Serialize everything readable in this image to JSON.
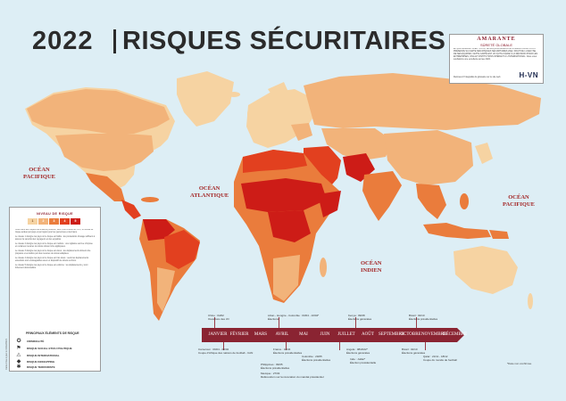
{
  "title": {
    "year": "2022",
    "main": "RISQUES SÉCURITAIRES"
  },
  "oceans": [
    {
      "key": "pac_w",
      "label": "OCÉAN\nPACIFIQUE"
    },
    {
      "key": "atl",
      "label": "OCÉAN\nATLANTIQUE"
    },
    {
      "key": "ind",
      "label": "OCÉAN\nINDIEN"
    },
    {
      "key": "pac_e",
      "label": "OCÉAN\nPACIFIQUE"
    }
  ],
  "brand": {
    "logo": "AMARANTE",
    "tagline": "SÛRETÉ GLOBALE",
    "text": "EN PARTENARIAT AVEC H-OVN, LE GROUPE AMARANTE INTERNATIONAL VOUS PRÉSENTE SA CARTE DES RISQUES SÉCURITAIRES 2022, FRUIT DE L'ANALYSE DE SES ÉQUIPES. CETTE CARTE EST UN OUTIL D'AIDE À LA DÉCISION POUR LES ENTREPRISES, ONG ET INSTITUTIONS OPÉRANT À L'INTERNATIONAL. Nous vous souhaitons une excellente année 2022.",
    "url": "Retrouvez l'intégralité du glossaire sur le site web",
    "partner": "H-VN"
  },
  "legend": {
    "title": "NIVEAU DE RISQUE",
    "scale": [
      "1",
      "2",
      "3",
      "4",
      "5"
    ],
    "paragraphs": [
      "Cette carte des risques sécuritaires présente, selon une échelle de 1 à 5, le niveau de risque évalué par pays et par région pour les personnes et les biens.",
      "Le niveau 1 désigne les pays où le risque est faible : les précautions d'usage suffisent à assurer la sécurité des voyageurs et des expatriés.",
      "Le niveau 2 désigne les pays où le risque est modéré : une vigilance accrue s'impose et certaines mesures de sûreté doivent être appliquées.",
      "Le niveau 3 désigne les pays où le risque est élevé : les déplacements doivent être préparés et encadrés par des mesures de sûreté adaptées.",
      "Le niveau 4 désigne les pays où le risque est très élevé : seuls les déplacements essentiels sont envisageables avec un dispositif de sûreté renforcé.",
      "Le niveau 5 désigne les pays où le risque est extrême : les déplacements y sont fortement déconseillés."
    ],
    "symbols_title": "PRINCIPAUX ÉLÉMENTS DE RISQUE",
    "symbols": [
      {
        "icon": "criminality-icon",
        "glyph": "✪",
        "label": "CRIMINALITÉ"
      },
      {
        "icon": "political-unrest-icon",
        "glyph": "⚑",
        "label": "RISQUE SOCIAL ET/OU POLITIQUE"
      },
      {
        "icon": "international-risk-icon",
        "glyph": "⚠",
        "label": "RISQUE INTERNATIONAL"
      },
      {
        "icon": "kidnapping-icon",
        "glyph": "◆",
        "label": "RISQUE KIDNAPPING"
      },
      {
        "icon": "terrorism-icon",
        "glyph": "✱",
        "label": "RISQUE TERRORISTE"
      }
    ]
  },
  "timeline": {
    "months": [
      "JANVIER",
      "FÉVRIER",
      "MARS",
      "AVRIL",
      "MAI",
      "JUIN",
      "JUILLET",
      "AOÛT",
      "SEPTEMBRE",
      "OCTOBRE",
      "NOVEMBRE",
      "DÉCEMBRE"
    ],
    "events_above": [
      {
        "key": "e1",
        "text": "Chine : 04/02\nOuverture des JO"
      },
      {
        "key": "e2",
        "text": "Liban - Hongrie - Colombie : 03/04 - 10/04*\nÉlections"
      },
      {
        "key": "e3",
        "text": "Kenya : 09/08\nÉlections générales"
      },
      {
        "key": "e4",
        "text": "Brésil : 02/10\nÉlections présidentielles"
      }
    ],
    "events_below": [
      {
        "key": "b1",
        "text": "Cameroun : 09/01 - 06/02\nCoupe d'Afrique des nations de football - CAN"
      },
      {
        "key": "b2",
        "text": "France : 10/04\nÉlections présidentielles"
      },
      {
        "key": "b3",
        "text": "Colombie : 29/05\nÉlections présidentielles"
      },
      {
        "key": "b4",
        "text": "Philippines : 09/05\nÉlections présidentielles"
      },
      {
        "key": "b5",
        "text": "Mexique : 27/03\nRéférendum sur la révocation du mandat présidentiel"
      },
      {
        "key": "b6",
        "text": "Angola : 08/2022*\nÉlections générales"
      },
      {
        "key": "b7",
        "text": "Inde : Juillet*\nÉlection présidentielle"
      },
      {
        "key": "b8",
        "text": "Brésil : 02/10\nÉlections générales"
      },
      {
        "key": "b9",
        "text": "Qatar : 21/11 - 18/12\nCoupe du monde de football"
      }
    ],
    "note": "*Date non confirmée"
  },
  "map_colors": {
    "ocean": "#ddeef5",
    "level1": "#f6d3a2",
    "level2": "#f2b37a",
    "level3": "#ea7c3c",
    "level4": "#e2401f",
    "level5": "#cd1c17",
    "accent": "#8a1c2c",
    "timeline": "#8a2432"
  },
  "side_note": "Carte mise à jour le 01/12/2021"
}
